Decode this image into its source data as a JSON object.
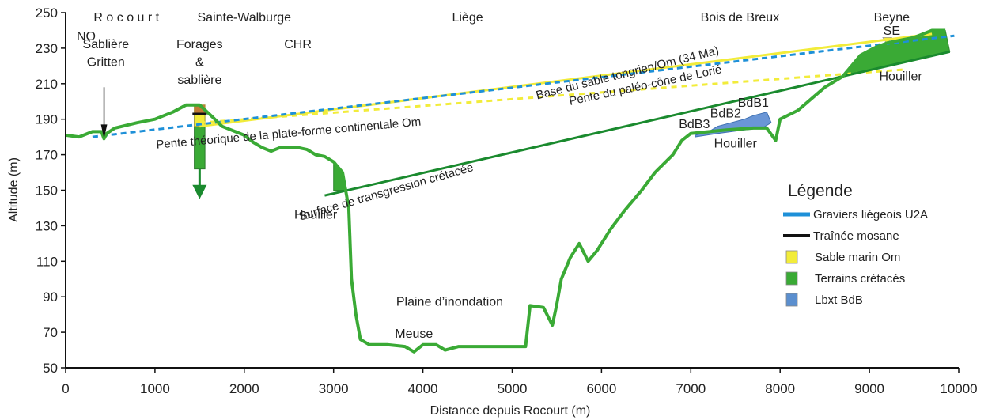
{
  "axes": {
    "xlabel": "Distance depuis Rocourt (m)",
    "ylabel": "Altitude (m)",
    "xlim": [
      0,
      10000
    ],
    "ylim": [
      50,
      250
    ],
    "xticks": [
      0,
      1000,
      2000,
      3000,
      4000,
      5000,
      6000,
      7000,
      8000,
      9000,
      10000
    ],
    "yticks": [
      50,
      70,
      90,
      110,
      130,
      150,
      170,
      190,
      210,
      230,
      250
    ]
  },
  "places": [
    {
      "id": "rocourt",
      "text": "R o c o u r t",
      "x": 680,
      "y": 245
    },
    {
      "id": "sainte-walburge",
      "text": "Sainte-Walburge",
      "x": 2000,
      "y": 245
    },
    {
      "id": "liege",
      "text": "Liège",
      "x": 4500,
      "y": 245
    },
    {
      "id": "bois-de-breux",
      "text": "Bois de Breux",
      "x": 7550,
      "y": 245
    },
    {
      "id": "beyne",
      "text": "Beyne",
      "x": 9250,
      "y": 245
    },
    {
      "id": "no",
      "text": "NO",
      "x": 230,
      "y": 234.5
    },
    {
      "id": "se",
      "text": "SE",
      "x": 9250,
      "y": 237.5
    },
    {
      "id": "sabliere-1",
      "text": "Sablière",
      "x": 450,
      "y": 230
    },
    {
      "id": "sabliere-2",
      "text": "Gritten",
      "x": 450,
      "y": 220
    },
    {
      "id": "forages-1",
      "text": "Forages",
      "x": 1500,
      "y": 230
    },
    {
      "id": "forages-2",
      "text": "&",
      "x": 1500,
      "y": 220
    },
    {
      "id": "forages-3",
      "text": "sablière",
      "x": 1500,
      "y": 210
    },
    {
      "id": "chr",
      "text": "CHR",
      "x": 2600,
      "y": 230
    },
    {
      "id": "houiller-1",
      "text": "Houiller",
      "x": 2800,
      "y": 134
    },
    {
      "id": "houiller-2",
      "text": "Houiller",
      "x": 7500,
      "y": 174
    },
    {
      "id": "houiller-3",
      "text": "Houiller",
      "x": 9350,
      "y": 212
    },
    {
      "id": "bdb3",
      "text": "BdB3",
      "x": 7040,
      "y": 185
    },
    {
      "id": "bdb2",
      "text": "BdB2",
      "x": 7390,
      "y": 191
    },
    {
      "id": "bdb1",
      "text": "BdB1",
      "x": 7700,
      "y": 197
    },
    {
      "id": "plaine",
      "text": "Plaine d’inondation",
      "x": 4300,
      "y": 85
    },
    {
      "id": "meuse",
      "text": "Meuse",
      "x": 3900,
      "y": 67
    }
  ],
  "profile": [
    [
      0,
      181
    ],
    [
      150,
      180
    ],
    [
      300,
      183
    ],
    [
      400,
      183
    ],
    [
      430,
      179
    ],
    [
      460,
      182
    ],
    [
      550,
      185
    ],
    [
      800,
      188
    ],
    [
      1000,
      190
    ],
    [
      1200,
      194
    ],
    [
      1350,
      198
    ],
    [
      1500,
      198
    ],
    [
      1650,
      191
    ],
    [
      1750,
      186
    ],
    [
      1900,
      183
    ],
    [
      2000,
      181
    ],
    [
      2100,
      177
    ],
    [
      2200,
      174
    ],
    [
      2300,
      172
    ],
    [
      2400,
      174
    ],
    [
      2500,
      174
    ],
    [
      2600,
      174
    ],
    [
      2700,
      173
    ],
    [
      2800,
      170
    ],
    [
      2900,
      169
    ],
    [
      3000,
      166
    ],
    [
      3100,
      160
    ],
    [
      3170,
      140
    ],
    [
      3200,
      100
    ],
    [
      3250,
      80
    ],
    [
      3300,
      66
    ],
    [
      3400,
      63
    ],
    [
      3600,
      63
    ],
    [
      3800,
      62
    ],
    [
      3900,
      59
    ],
    [
      4000,
      63
    ],
    [
      4150,
      63
    ],
    [
      4250,
      60
    ],
    [
      4400,
      62
    ],
    [
      4700,
      62
    ],
    [
      5100,
      62
    ],
    [
      5150,
      62
    ],
    [
      5200,
      85
    ],
    [
      5350,
      84
    ],
    [
      5450,
      74
    ],
    [
      5500,
      86
    ],
    [
      5550,
      100
    ],
    [
      5650,
      112
    ],
    [
      5750,
      120
    ],
    [
      5850,
      110
    ],
    [
      5950,
      116
    ],
    [
      6100,
      128
    ],
    [
      6250,
      138
    ],
    [
      6450,
      150
    ],
    [
      6600,
      160
    ],
    [
      6800,
      170
    ],
    [
      6900,
      178
    ],
    [
      7000,
      182
    ],
    [
      7400,
      184
    ],
    [
      7700,
      185
    ],
    [
      7850,
      185
    ],
    [
      7950,
      178
    ],
    [
      8000,
      190
    ],
    [
      8200,
      195
    ],
    [
      8500,
      208
    ],
    [
      8700,
      214
    ],
    [
      8900,
      226
    ],
    [
      9050,
      230
    ],
    [
      9200,
      233
    ],
    [
      9500,
      236
    ],
    [
      9700,
      240
    ],
    [
      9850,
      240
    ]
  ],
  "features": {
    "gravels": [
      [
        300,
        180
      ],
      [
        9950,
        237
      ]
    ],
    "tongrien": [
      [
        1500,
        186
      ],
      [
        9700,
        238
      ]
    ],
    "palaeo": [
      [
        1500,
        188
      ],
      [
        9400,
        218
      ]
    ],
    "cretace_line": [
      [
        2900,
        147
      ],
      [
        9900,
        228
      ]
    ],
    "cretace_wedge": [
      [
        3000,
        166
      ],
      [
        3100,
        160
      ],
      [
        3150,
        150
      ],
      [
        3000,
        150
      ]
    ],
    "cretace_se": [
      [
        8700,
        214
      ],
      [
        8900,
        226
      ],
      [
        9050,
        230
      ],
      [
        9200,
        233
      ],
      [
        9500,
        236
      ],
      [
        9700,
        240
      ],
      [
        9850,
        240
      ],
      [
        9900,
        228
      ],
      [
        8700,
        214
      ]
    ],
    "lbxt": [
      [
        7050,
        181
      ],
      [
        7200,
        183
      ],
      [
        7300,
        186
      ],
      [
        7450,
        188
      ],
      [
        7600,
        190
      ],
      [
        7700,
        192
      ],
      [
        7850,
        194
      ],
      [
        7900,
        188
      ],
      [
        7800,
        185
      ],
      [
        7600,
        184
      ],
      [
        7300,
        182
      ],
      [
        7050,
        180
      ]
    ],
    "sable_beyne": [
      [
        9150,
        236
      ],
      [
        9250,
        236
      ],
      [
        9200,
        232
      ]
    ],
    "forage_top": [
      [
        1440,
        198
      ],
      [
        1560,
        198
      ]
    ],
    "forage_yellow": [
      [
        1440,
        198
      ],
      [
        1560,
        198
      ],
      [
        1560,
        186
      ],
      [
        1440,
        186
      ]
    ],
    "forage_green": [
      [
        1440,
        186
      ],
      [
        1560,
        186
      ],
      [
        1560,
        162
      ],
      [
        1440,
        162
      ]
    ]
  },
  "line_labels": [
    {
      "id": "base-sable",
      "text": "Base du sable tongrien/Om (34 Ma)",
      "x": 6300,
      "y": 214,
      "angle": -14
    },
    {
      "id": "pente-paleo",
      "text": "Pente du paléo-cône de Lorié",
      "x": 6500,
      "y": 207,
      "angle": -12
    },
    {
      "id": "pente-theorique",
      "text": "Pente théorique de la plate-forme continentale Om",
      "x": 2500,
      "y": 180,
      "angle": -5
    },
    {
      "id": "transgression",
      "text": "Surface de transgression crétacée",
      "x": 3600,
      "y": 147,
      "angle": -16
    }
  ],
  "legend": {
    "title": "Légende",
    "items": [
      {
        "label": "Graviers liégeois U2A",
        "color": "#1e90d8",
        "kind": "line"
      },
      {
        "label": "Traînée mosane",
        "color": "#111111",
        "kind": "line"
      },
      {
        "label": "Sable marin Om",
        "color": "#f2ec3a",
        "kind": "box"
      },
      {
        "label": "Terrains crétacés",
        "color": "#3aaa35",
        "kind": "box"
      },
      {
        "label": "Lbxt BdB",
        "color": "#5b8fcf",
        "kind": "box"
      }
    ]
  },
  "colors": {
    "profile": "#3aaa35",
    "gravels": "#1e90d8",
    "tongrien": "#f2ec3a",
    "cretace": "#1a8a2e",
    "lbxt": "#6a96d6",
    "forage_top": "#c07a35"
  }
}
